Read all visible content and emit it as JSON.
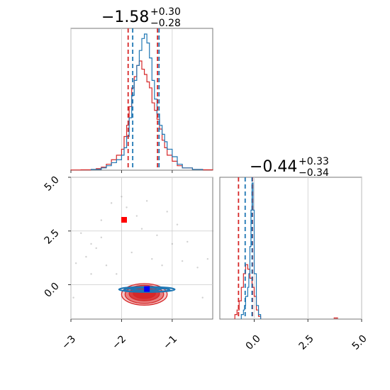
{
  "chart_data": {
    "type": "corner",
    "colors": {
      "series_a": "#d62728",
      "series_b": "#1f77b4",
      "truth_square": "#ff0000",
      "median_square": "#0000ff",
      "grid": "#cccccc"
    },
    "axes": {
      "p1_range": [
        -3.0,
        -0.2
      ],
      "p2_range": [
        -1.6,
        5.0
      ],
      "p1_ticks": [
        -3,
        -2,
        -1
      ],
      "p1_tick_labels": [
        "−3",
        "−2",
        "−1"
      ],
      "p2_ticks": [
        0.0,
        2.5,
        5.0
      ],
      "p2_tick_labels": [
        "0.0",
        "2.5",
        "5.0"
      ]
    },
    "titles": {
      "p1": {
        "median": "−1.58",
        "plus": "+0.30",
        "minus": "−0.28"
      },
      "p2": {
        "median": "−0.44",
        "plus": "+0.33",
        "minus": "−0.34"
      }
    },
    "hist_p1": {
      "quantiles_a": [
        -1.87,
        -1.29
      ],
      "quantiles_b": [
        -1.78,
        -1.26
      ],
      "series_a_bins": [
        [
          -3.0,
          0.3
        ],
        [
          -2.8,
          0.5
        ],
        [
          -2.6,
          1
        ],
        [
          -2.5,
          2
        ],
        [
          -2.4,
          4
        ],
        [
          -2.3,
          8
        ],
        [
          -2.2,
          14
        ],
        [
          -2.1,
          20
        ],
        [
          -2.0,
          28
        ],
        [
          -1.95,
          45
        ],
        [
          -1.9,
          60
        ],
        [
          -1.85,
          85
        ],
        [
          -1.8,
          110
        ],
        [
          -1.75,
          125
        ],
        [
          -1.7,
          140
        ],
        [
          -1.65,
          146
        ],
        [
          -1.6,
          135
        ],
        [
          -1.55,
          128
        ],
        [
          -1.5,
          118
        ],
        [
          -1.45,
          110
        ],
        [
          -1.4,
          90
        ],
        [
          -1.35,
          80
        ],
        [
          -1.3,
          68
        ],
        [
          -1.25,
          55
        ],
        [
          -1.2,
          40
        ],
        [
          -1.15,
          30
        ],
        [
          -1.1,
          20
        ],
        [
          -1.0,
          12
        ],
        [
          -0.9,
          6
        ],
        [
          -0.8,
          3
        ],
        [
          -0.6,
          1
        ],
        [
          -0.4,
          0.5
        ]
      ],
      "series_b_bins": [
        [
          -2.6,
          1
        ],
        [
          -2.4,
          3
        ],
        [
          -2.3,
          6
        ],
        [
          -2.2,
          10
        ],
        [
          -2.1,
          14
        ],
        [
          -2.0,
          20
        ],
        [
          -1.95,
          30
        ],
        [
          -1.9,
          45
        ],
        [
          -1.85,
          70
        ],
        [
          -1.8,
          100
        ],
        [
          -1.75,
          120
        ],
        [
          -1.7,
          140
        ],
        [
          -1.65,
          160
        ],
        [
          -1.6,
          176
        ],
        [
          -1.55,
          182
        ],
        [
          -1.5,
          170
        ],
        [
          -1.45,
          150
        ],
        [
          -1.4,
          120
        ],
        [
          -1.35,
          95
        ],
        [
          -1.3,
          75
        ],
        [
          -1.25,
          60
        ],
        [
          -1.2,
          48
        ],
        [
          -1.15,
          38
        ],
        [
          -1.1,
          28
        ],
        [
          -1.0,
          18
        ],
        [
          -0.9,
          8
        ],
        [
          -0.8,
          3
        ],
        [
          -0.6,
          1
        ]
      ]
    },
    "hist_p2": {
      "quantiles_a": [
        -0.73,
        -0.08
      ],
      "quantiles_b": [
        -0.42,
        -0.1
      ],
      "series_a_bins": [
        [
          -0.9,
          0.05
        ],
        [
          -0.8,
          0.1
        ],
        [
          -0.7,
          0.2
        ],
        [
          -0.6,
          0.35
        ],
        [
          -0.5,
          0.5
        ],
        [
          -0.4,
          0.6
        ],
        [
          -0.3,
          0.55
        ],
        [
          -0.2,
          0.45
        ],
        [
          -0.1,
          0.35
        ],
        [
          0.0,
          0.25
        ],
        [
          0.1,
          0.1
        ],
        [
          0.2,
          0.03
        ]
      ],
      "series_b_bins": [
        [
          -0.6,
          0.05
        ],
        [
          -0.5,
          0.1
        ],
        [
          -0.45,
          0.15
        ],
        [
          -0.4,
          0.25
        ],
        [
          -0.3,
          0.35
        ],
        [
          -0.25,
          0.5
        ],
        [
          -0.2,
          0.8
        ],
        [
          -0.15,
          1.2
        ],
        [
          -0.1,
          1.5
        ],
        [
          -0.05,
          1.2
        ],
        [
          0.0,
          0.5
        ],
        [
          0.1,
          0.15
        ],
        [
          0.2,
          0.05
        ]
      ],
      "extra_points_a": [
        [
          3.7,
          0.02
        ],
        [
          3.8,
          0.02
        ]
      ]
    },
    "scatter": {
      "truth_point": [
        -1.95,
        3.02
      ],
      "median_point": [
        -1.5,
        -0.2
      ],
      "outliers": [
        [
          -2.8,
          2.4
        ],
        [
          -2.6,
          1.9
        ],
        [
          -2.4,
          2.2
        ],
        [
          -2.3,
          0.9
        ],
        [
          -2.7,
          1.3
        ],
        [
          -2.5,
          1.7
        ],
        [
          -2.2,
          3.8
        ],
        [
          -2.0,
          4.1
        ],
        [
          -1.9,
          3.6
        ],
        [
          -1.7,
          3.2
        ],
        [
          -1.6,
          2.6
        ],
        [
          -1.8,
          1.5
        ],
        [
          -1.3,
          2.3
        ],
        [
          -1.1,
          3.4
        ],
        [
          -1.0,
          1.9
        ],
        [
          -0.9,
          2.8
        ],
        [
          -0.8,
          1.1
        ],
        [
          -0.5,
          0.8
        ],
        [
          -0.3,
          1.2
        ],
        [
          -2.9,
          1.0
        ],
        [
          -2.1,
          0.5
        ],
        [
          -1.4,
          1.2
        ],
        [
          -2.4,
          3.0
        ],
        [
          -1.5,
          3.9
        ],
        [
          -0.7,
          2.0
        ],
        [
          -1.2,
          0.9
        ],
        [
          -2.6,
          0.5
        ],
        [
          -0.4,
          -0.6
        ],
        [
          -2.95,
          -0.6
        ],
        [
          -0.2,
          2.5
        ]
      ],
      "contours_a": [
        {
          "cx": -1.55,
          "cy": -0.45,
          "rx": 0.45,
          "ry": 0.5,
          "fill_opacity": 0.25
        },
        {
          "cx": -1.55,
          "cy": -0.45,
          "rx": 0.38,
          "ry": 0.42,
          "fill_opacity": 0.45
        },
        {
          "cx": -1.55,
          "cy": -0.42,
          "rx": 0.3,
          "ry": 0.33,
          "fill_opacity": 0.75
        },
        {
          "cx": -1.55,
          "cy": -0.4,
          "rx": 0.22,
          "ry": 0.24,
          "fill_opacity": 0.95
        }
      ],
      "contours_b": [
        {
          "cx": -1.5,
          "cy": -0.22,
          "rx": 0.55,
          "ry": 0.12
        },
        {
          "cx": -1.5,
          "cy": -0.24,
          "rx": 0.45,
          "ry": 0.09
        },
        {
          "cx": -1.52,
          "cy": -0.2,
          "rx": 0.3,
          "ry": 0.06
        }
      ]
    }
  }
}
